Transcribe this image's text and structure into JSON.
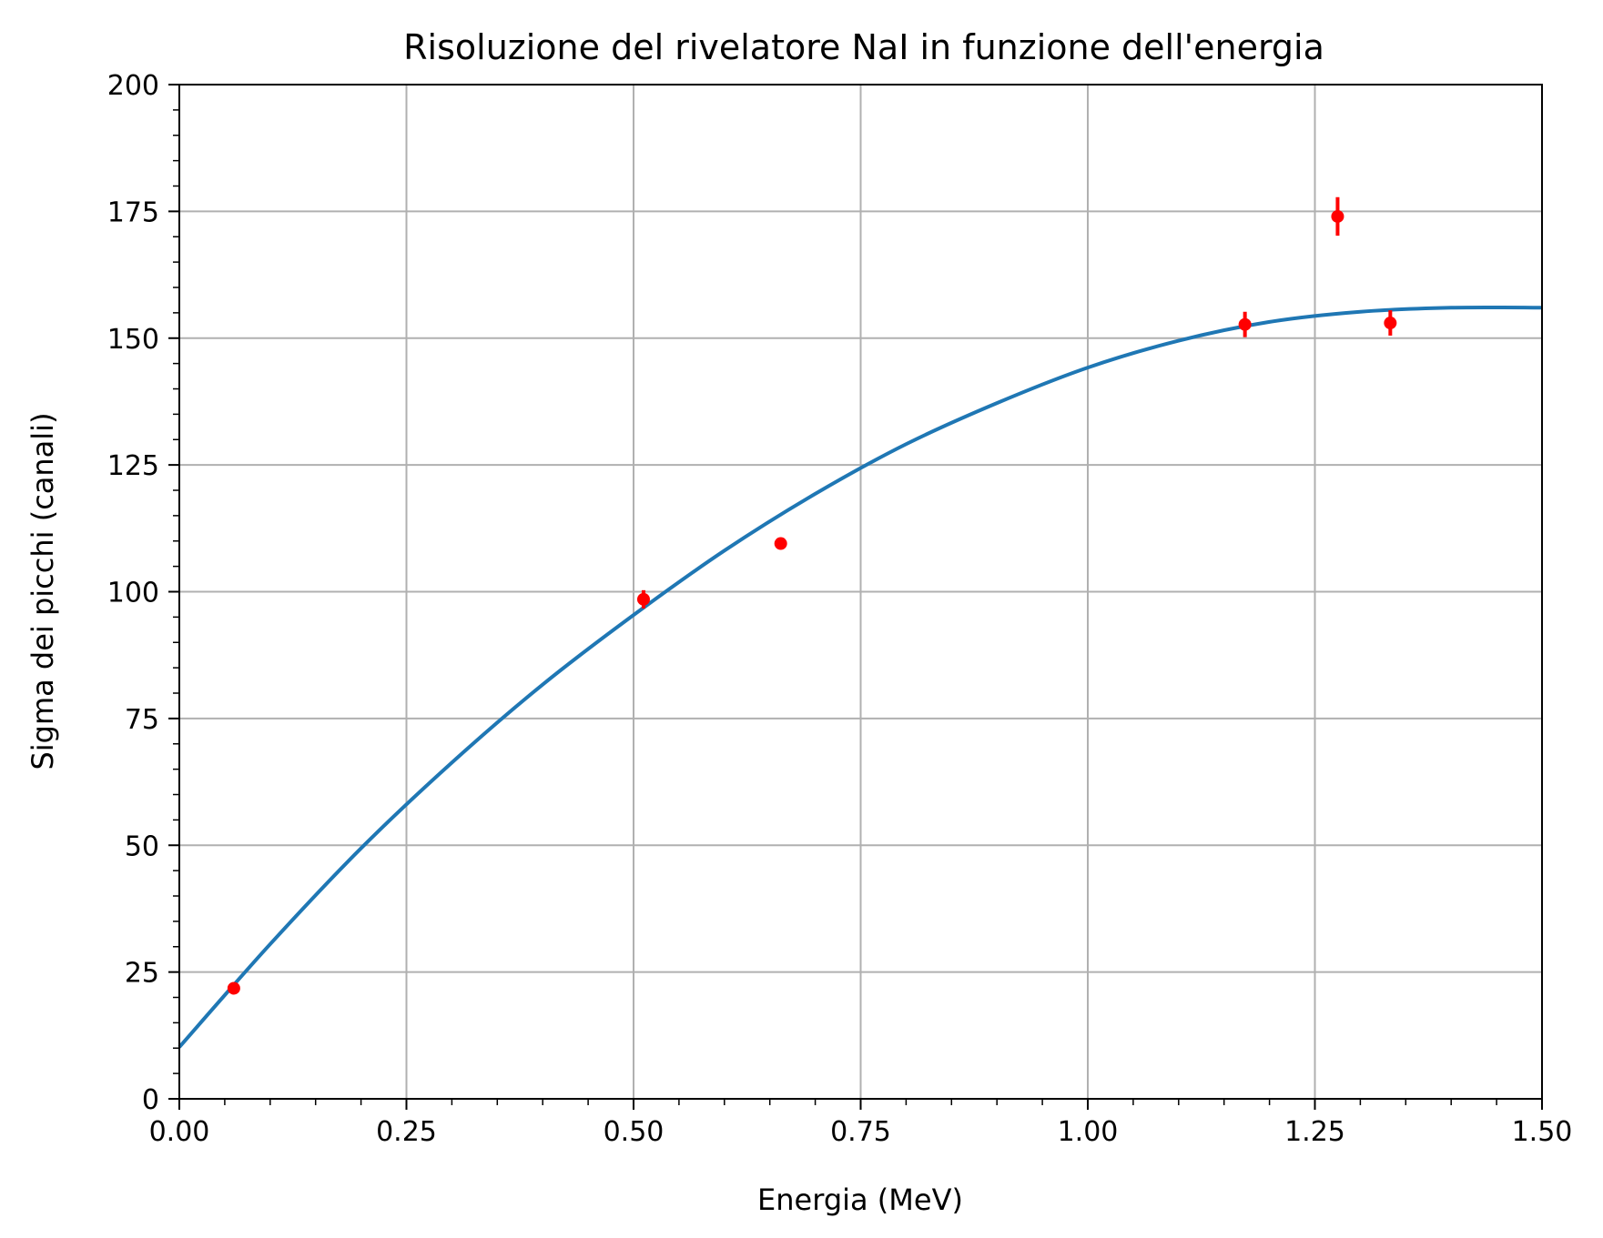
{
  "chart_data": {
    "type": "scatter",
    "title": "Risoluzione del rivelatore NaI in funzione dell'energia",
    "xlabel": "Energia (MeV)",
    "ylabel": "Sigma dei picchi (canali)",
    "xlim": [
      0.0,
      1.5
    ],
    "ylim": [
      0,
      200
    ],
    "x_ticks": [
      "0.00",
      "0.25",
      "0.50",
      "0.75",
      "1.00",
      "1.25",
      "1.50"
    ],
    "y_ticks": [
      "0",
      "25",
      "50",
      "75",
      "100",
      "125",
      "150",
      "175",
      "200"
    ],
    "grid": true,
    "series": [
      {
        "kind": "errorbar",
        "color": "#ff0000",
        "x": [
          0.06,
          0.511,
          0.662,
          1.173,
          1.275,
          1.333
        ],
        "y": [
          21.8,
          98.5,
          109.5,
          152.7,
          174.0,
          153.0
        ],
        "yerr": [
          0.6,
          1.8,
          0.8,
          2.5,
          3.8,
          2.5
        ]
      },
      {
        "kind": "line",
        "color": "#1f77b4",
        "x": [
          0.0,
          0.1,
          0.2,
          0.3,
          0.4,
          0.5,
          0.6,
          0.7,
          0.8,
          0.9,
          1.0,
          1.1,
          1.2,
          1.3,
          1.4,
          1.5
        ],
        "y": [
          10.2,
          30.5,
          49.4,
          66.3,
          81.7,
          95.4,
          108.1,
          119.3,
          129.1,
          137.2,
          144.2,
          149.5,
          153.2,
          155.2,
          156.0,
          156.0
        ]
      }
    ]
  }
}
